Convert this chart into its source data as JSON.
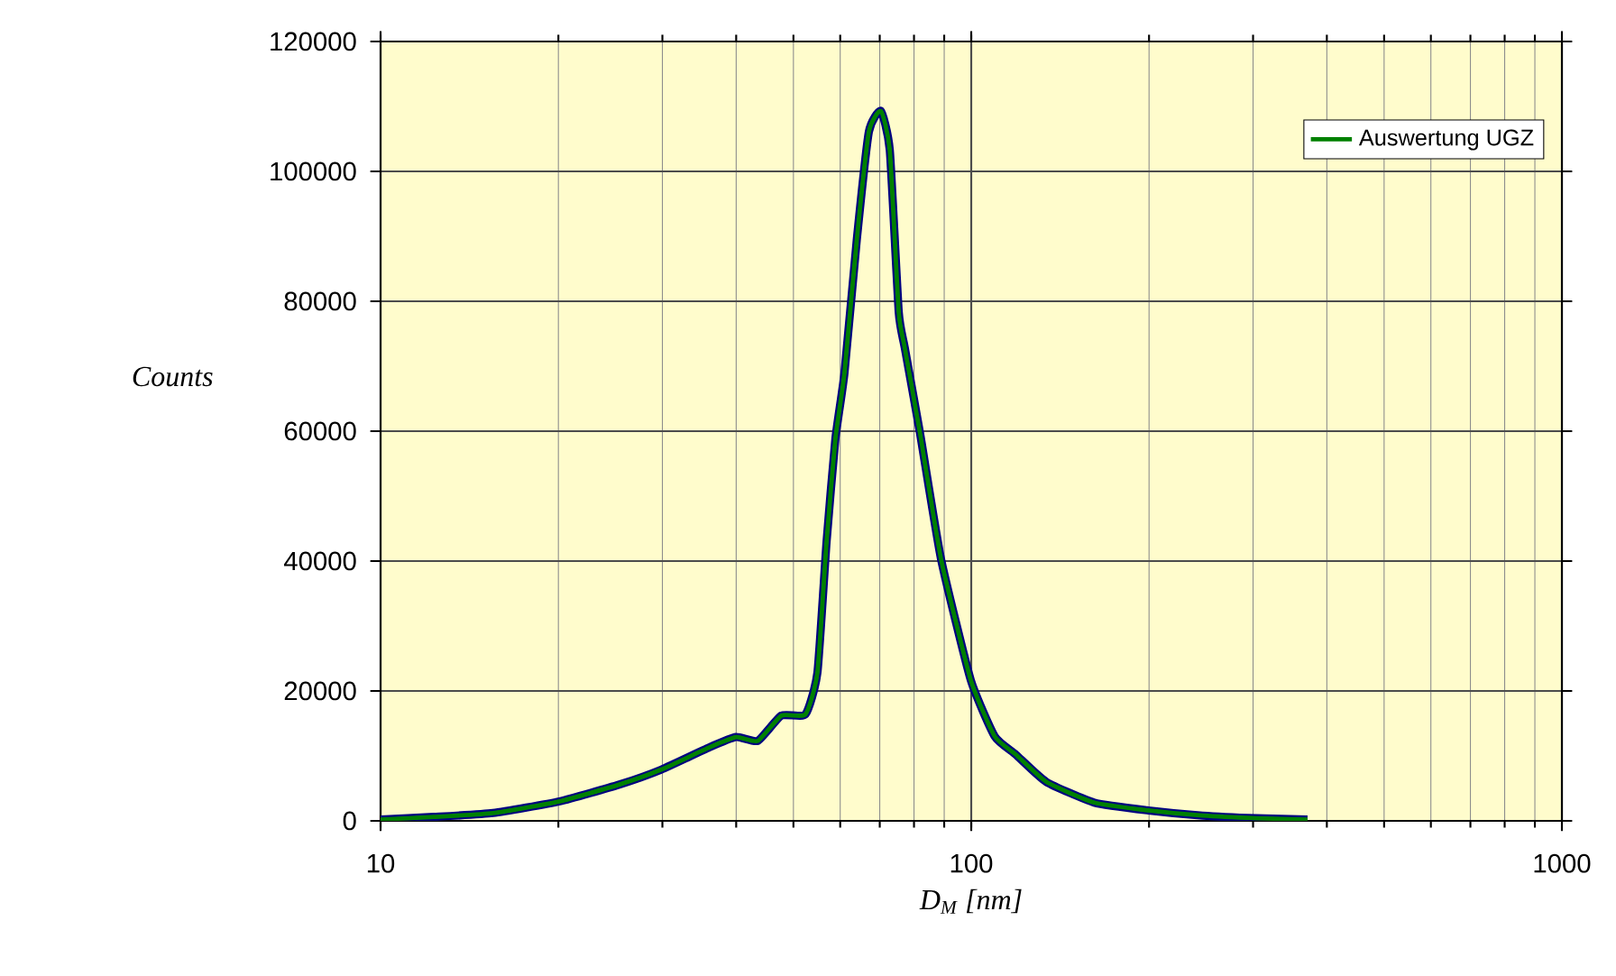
{
  "chart_data": {
    "type": "line",
    "xlabel": "D$_{M}$   [nm]",
    "ylabel": "Counts",
    "log": "x",
    "grid": true,
    "legend": "top right",
    "xlim": [
      10,
      1000
    ],
    "xticks": [
      10,
      100,
      1000
    ],
    "ylim": [
      0,
      120000
    ],
    "yticks": [
      0,
      20000,
      40000,
      60000,
      80000,
      100000,
      120000
    ],
    "x": [
      10,
      12.3,
      15.5,
      20.1,
      25.4,
      29.9,
      36.0,
      40.0,
      43.5,
      47.7,
      52.4,
      54.9,
      56.9,
      58.9,
      61.0,
      64.0,
      67.1,
      70.3,
      72.8,
      75.4,
      77.2,
      81.9,
      88.9,
      99.8,
      109.6,
      119,
      134,
      161.6,
      199.5,
      246.5,
      304,
      371
    ],
    "series": [
      {
        "color": "#000080",
        "values": [
          200,
          600,
          1200,
          3000,
          5600,
          7900,
          11300,
          12900,
          12300,
          16200,
          16400,
          22800,
          43000,
          58900,
          68900,
          89400,
          106100,
          109300,
          103300,
          78300,
          72800,
          59700,
          40300,
          21700,
          13000,
          10200,
          6000,
          2800,
          1600,
          800,
          400,
          200
        ]
      },
      {
        "name": "Auswertung UGZ",
        "color": "#008000",
        "values": [
          200,
          600,
          1200,
          3000,
          5600,
          7900,
          11300,
          12900,
          12300,
          16200,
          16400,
          22800,
          43000,
          58900,
          68900,
          89400,
          106100,
          109300,
          103300,
          78300,
          72800,
          59700,
          40300,
          21700,
          13000,
          10200,
          6000,
          2800,
          1600,
          800,
          400,
          200
        ]
      }
    ]
  }
}
